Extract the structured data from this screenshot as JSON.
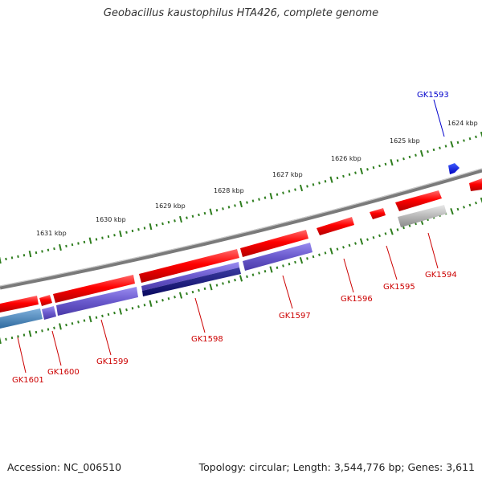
{
  "title": "Geobacillus kaustophilus HTA426, complete genome",
  "footer": {
    "accession": "Accession: NC_006510",
    "topology": "Topology: circular; Length: 3,544,776 bp; Genes: 3,611"
  },
  "kbp_labels": [
    "1624 kbp",
    "1625 kbp",
    "1626 kbp",
    "1627 kbp",
    "1628 kbp",
    "1629 kbp",
    "1630 kbp",
    "1631 kbp"
  ],
  "genes": [
    {
      "name": "GK1593",
      "color": "#0000cc"
    },
    {
      "name": "GK1594",
      "color": "#cc0000"
    },
    {
      "name": "GK1595",
      "color": "#cc0000"
    },
    {
      "name": "GK1596",
      "color": "#cc0000"
    },
    {
      "name": "GK1597",
      "color": "#cc0000"
    },
    {
      "name": "GK1598",
      "color": "#cc0000"
    },
    {
      "name": "GK1599",
      "color": "#cc0000"
    },
    {
      "name": "GK1600",
      "color": "#cc0000"
    },
    {
      "name": "GK1601",
      "color": "#cc0000"
    }
  ],
  "colors": {
    "forward_strand": "#e00000",
    "reverse_cds": "#6a5acd",
    "reverse_dark": "#1a1a80",
    "reverse_blue": "#4682b4",
    "pseudo_gray": "#aaaaaa",
    "backbone": "#808080",
    "tick": "#2e7d1e"
  }
}
